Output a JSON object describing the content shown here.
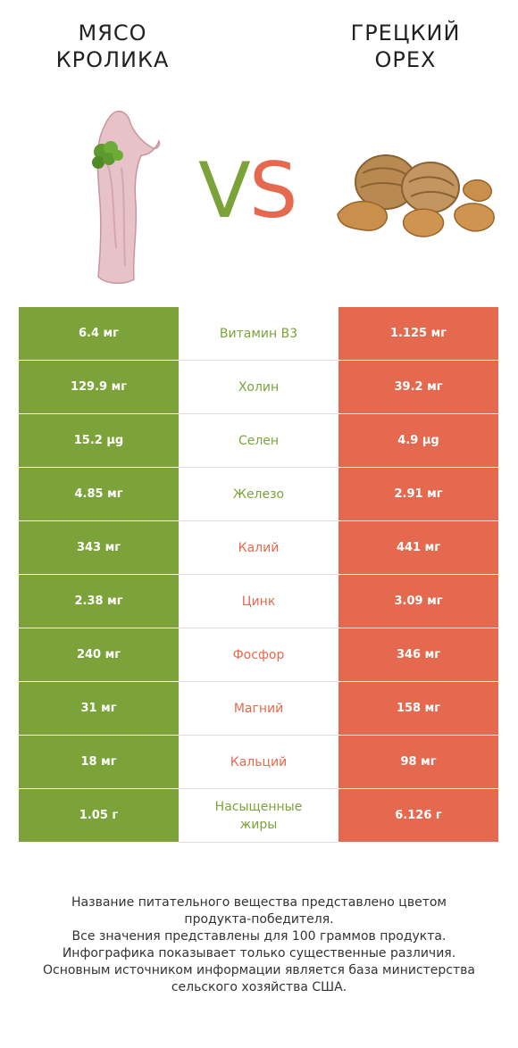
{
  "header": {
    "left_title_line1": "МЯСО",
    "left_title_line2": "КРОЛИКА",
    "right_title_line1": "ГРЕЦКИЙ",
    "right_title_line2": "ОРЕХ",
    "vs_v": "V",
    "vs_s": "S"
  },
  "colors": {
    "left": "#7ca33a",
    "right": "#e5694e"
  },
  "rows": [
    {
      "left": "6.4 мг",
      "name": "Витамин B3",
      "right": "1.125 мг",
      "winner": "left"
    },
    {
      "left": "129.9 мг",
      "name": "Холин",
      "right": "39.2 мг",
      "winner": "left"
    },
    {
      "left": "15.2 µg",
      "name": "Селен",
      "right": "4.9 µg",
      "winner": "left"
    },
    {
      "left": "4.85 мг",
      "name": "Железо",
      "right": "2.91 мг",
      "winner": "left"
    },
    {
      "left": "343 мг",
      "name": "Калий",
      "right": "441 мг",
      "winner": "right"
    },
    {
      "left": "2.38 мг",
      "name": "Цинк",
      "right": "3.09 мг",
      "winner": "right"
    },
    {
      "left": "240 мг",
      "name": "Фосфор",
      "right": "346 мг",
      "winner": "right"
    },
    {
      "left": "31 мг",
      "name": "Магний",
      "right": "158 мг",
      "winner": "right"
    },
    {
      "left": "18 мг",
      "name": "Кальций",
      "right": "98 мг",
      "winner": "right"
    },
    {
      "left": "1.05 г",
      "name": "Насыщенные жиры",
      "right": "6.126 г",
      "winner": "left"
    }
  ],
  "footer": {
    "line1": "Название питательного вещества представлено цветом",
    "line2": "продукта-победителя.",
    "line3": "Все значения представлены для 100 граммов продукта.",
    "line4": "Инфографика показывает только существенные различия.",
    "line5": "Основным источником информации является база министерства",
    "line6": "сельского хозяйства США."
  }
}
